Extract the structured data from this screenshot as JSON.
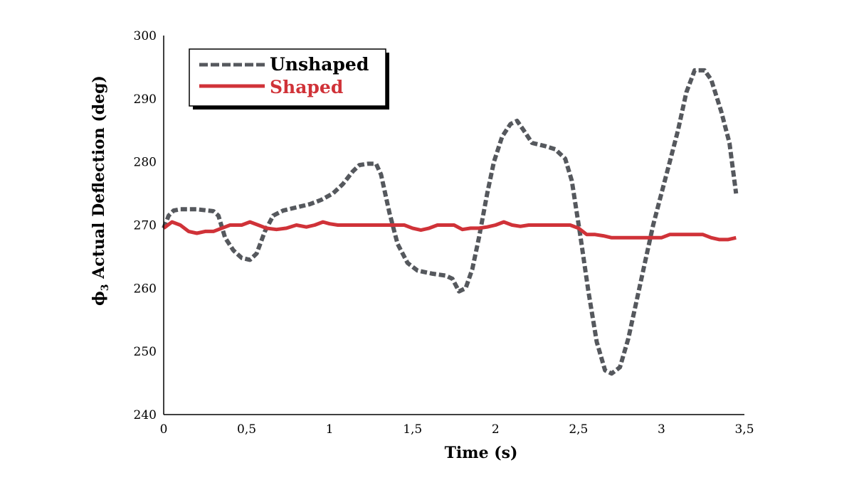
{
  "chart_data": {
    "type": "line",
    "title": "",
    "xlabel": "Time (s)",
    "ylabel_symbol": "ϕ",
    "ylabel_subscript": "3",
    "ylabel_text": " Actual Deflection  (deg)",
    "xlim": [
      0,
      3.5
    ],
    "ylim": [
      240,
      300
    ],
    "x_ticks": [
      {
        "value": 0,
        "label": "0"
      },
      {
        "value": 0.5,
        "label": "0,5"
      },
      {
        "value": 1,
        "label": "1"
      },
      {
        "value": 1.5,
        "label": "1,5"
      },
      {
        "value": 2,
        "label": "2"
      },
      {
        "value": 2.5,
        "label": "2,5"
      },
      {
        "value": 3,
        "label": "3"
      },
      {
        "value": 3.5,
        "label": "3,5"
      }
    ],
    "y_ticks": [
      {
        "value": 240,
        "label": "240"
      },
      {
        "value": 250,
        "label": "250"
      },
      {
        "value": 260,
        "label": "260"
      },
      {
        "value": 270,
        "label": "270"
      },
      {
        "value": 280,
        "label": "280"
      },
      {
        "value": 290,
        "label": "290"
      },
      {
        "value": 300,
        "label": "300"
      }
    ],
    "grid": false,
    "legend_position": "top-left",
    "series": [
      {
        "name": "Unshaped",
        "color": "#55585d",
        "style": "dashed",
        "points": [
          [
            0.0,
            269.5
          ],
          [
            0.03,
            271.5
          ],
          [
            0.06,
            272.3
          ],
          [
            0.1,
            272.5
          ],
          [
            0.2,
            272.5
          ],
          [
            0.3,
            272.2
          ],
          [
            0.33,
            271.5
          ],
          [
            0.37,
            268.0
          ],
          [
            0.42,
            266.0
          ],
          [
            0.47,
            264.8
          ],
          [
            0.52,
            264.5
          ],
          [
            0.56,
            265.5
          ],
          [
            0.61,
            269.0
          ],
          [
            0.66,
            271.5
          ],
          [
            0.72,
            272.3
          ],
          [
            0.8,
            272.8
          ],
          [
            0.88,
            273.3
          ],
          [
            0.95,
            274.0
          ],
          [
            1.02,
            275.0
          ],
          [
            1.08,
            276.5
          ],
          [
            1.14,
            278.5
          ],
          [
            1.18,
            279.5
          ],
          [
            1.23,
            279.7
          ],
          [
            1.28,
            279.7
          ],
          [
            1.31,
            278.0
          ],
          [
            1.36,
            272.0
          ],
          [
            1.41,
            267.0
          ],
          [
            1.47,
            264.0
          ],
          [
            1.53,
            262.8
          ],
          [
            1.62,
            262.3
          ],
          [
            1.7,
            262.0
          ],
          [
            1.74,
            261.5
          ],
          [
            1.78,
            259.5
          ],
          [
            1.82,
            260.0
          ],
          [
            1.86,
            263.0
          ],
          [
            1.9,
            268.0
          ],
          [
            1.95,
            275.0
          ],
          [
            1.99,
            280.0
          ],
          [
            2.04,
            284.0
          ],
          [
            2.09,
            286.0
          ],
          [
            2.13,
            286.5
          ],
          [
            2.17,
            285.0
          ],
          [
            2.22,
            283.0
          ],
          [
            2.3,
            282.5
          ],
          [
            2.36,
            282.0
          ],
          [
            2.42,
            280.5
          ],
          [
            2.46,
            277.0
          ],
          [
            2.51,
            268.5
          ],
          [
            2.56,
            259.5
          ],
          [
            2.61,
            251.5
          ],
          [
            2.66,
            247.0
          ],
          [
            2.7,
            246.5
          ],
          [
            2.75,
            247.5
          ],
          [
            2.8,
            252.0
          ],
          [
            2.85,
            258.0
          ],
          [
            2.9,
            264.0
          ],
          [
            2.95,
            270.0
          ],
          [
            3.0,
            275.0
          ],
          [
            3.05,
            280.0
          ],
          [
            3.1,
            285.0
          ],
          [
            3.15,
            291.0
          ],
          [
            3.2,
            294.5
          ],
          [
            3.26,
            294.5
          ],
          [
            3.3,
            293.0
          ],
          [
            3.36,
            288.0
          ],
          [
            3.41,
            283.0
          ],
          [
            3.45,
            275.0
          ]
        ]
      },
      {
        "name": "Shaped",
        "color": "#d03238",
        "style": "solid",
        "points": [
          [
            0.0,
            269.5
          ],
          [
            0.05,
            270.5
          ],
          [
            0.1,
            270.0
          ],
          [
            0.15,
            269.0
          ],
          [
            0.2,
            268.7
          ],
          [
            0.25,
            269.0
          ],
          [
            0.3,
            269.0
          ],
          [
            0.35,
            269.5
          ],
          [
            0.4,
            270.0
          ],
          [
            0.47,
            270.0
          ],
          [
            0.52,
            270.5
          ],
          [
            0.57,
            270.0
          ],
          [
            0.62,
            269.5
          ],
          [
            0.68,
            269.3
          ],
          [
            0.74,
            269.5
          ],
          [
            0.8,
            270.0
          ],
          [
            0.86,
            269.7
          ],
          [
            0.91,
            270.0
          ],
          [
            0.96,
            270.5
          ],
          [
            1.0,
            270.2
          ],
          [
            1.05,
            270.0
          ],
          [
            1.15,
            270.0
          ],
          [
            1.25,
            270.0
          ],
          [
            1.35,
            270.0
          ],
          [
            1.45,
            270.0
          ],
          [
            1.5,
            269.5
          ],
          [
            1.55,
            269.2
          ],
          [
            1.6,
            269.5
          ],
          [
            1.65,
            270.0
          ],
          [
            1.7,
            270.0
          ],
          [
            1.75,
            270.0
          ],
          [
            1.8,
            269.3
          ],
          [
            1.85,
            269.5
          ],
          [
            1.9,
            269.5
          ],
          [
            1.95,
            269.7
          ],
          [
            2.0,
            270.0
          ],
          [
            2.05,
            270.5
          ],
          [
            2.1,
            270.0
          ],
          [
            2.15,
            269.8
          ],
          [
            2.2,
            270.0
          ],
          [
            2.25,
            270.0
          ],
          [
            2.35,
            270.0
          ],
          [
            2.45,
            270.0
          ],
          [
            2.5,
            269.5
          ],
          [
            2.55,
            268.5
          ],
          [
            2.6,
            268.5
          ],
          [
            2.65,
            268.3
          ],
          [
            2.7,
            268.0
          ],
          [
            2.8,
            268.0
          ],
          [
            2.9,
            268.0
          ],
          [
            3.0,
            268.0
          ],
          [
            3.05,
            268.5
          ],
          [
            3.1,
            268.5
          ],
          [
            3.2,
            268.5
          ],
          [
            3.25,
            268.5
          ],
          [
            3.3,
            268.0
          ],
          [
            3.35,
            267.7
          ],
          [
            3.4,
            267.7
          ],
          [
            3.45,
            268.0
          ]
        ]
      }
    ]
  }
}
